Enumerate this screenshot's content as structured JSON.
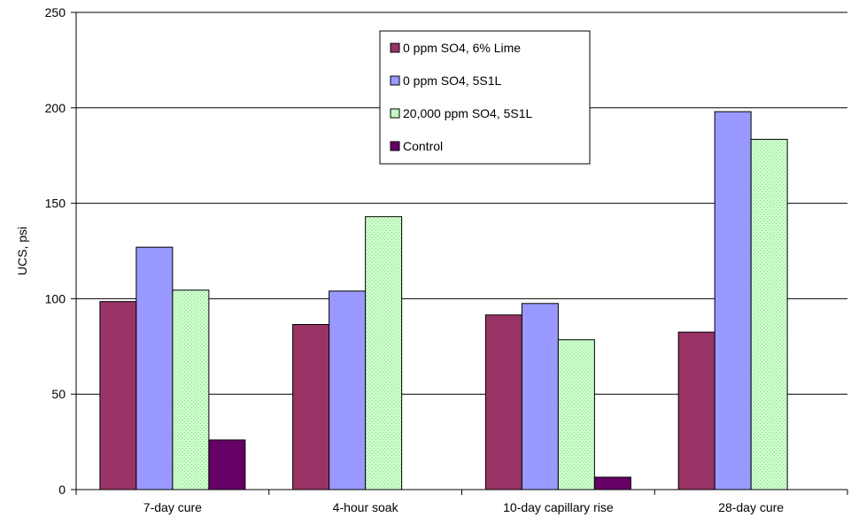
{
  "chart_data": {
    "type": "bar",
    "title": "",
    "xlabel": "",
    "ylabel": "UCS, psi",
    "ylim": [
      0,
      250
    ],
    "yticks": [
      0,
      50,
      100,
      150,
      200,
      250
    ],
    "grid": true,
    "legend_position": "top-center",
    "categories": [
      "7-day cure",
      "4-hour soak",
      "10-day capillary rise",
      "28-day cure"
    ],
    "series": [
      {
        "name": "0 ppm SO4, 6% Lime",
        "color": "#993366",
        "pattern": "solid",
        "values": [
          98.5,
          86.5,
          91.5,
          82.5
        ]
      },
      {
        "name": "0 ppm SO4, 5S1L",
        "color": "#9999FF",
        "pattern": "solid",
        "values": [
          127,
          104,
          97.5,
          198
        ]
      },
      {
        "name": "20,000 ppm SO4, 5S1L",
        "color": "#CCFFCC",
        "pattern": "dotted",
        "values": [
          104.5,
          143,
          78.5,
          183.5
        ]
      },
      {
        "name": "Control",
        "color": "#660066",
        "pattern": "solid",
        "values": [
          26,
          null,
          6.5,
          null
        ]
      }
    ]
  }
}
